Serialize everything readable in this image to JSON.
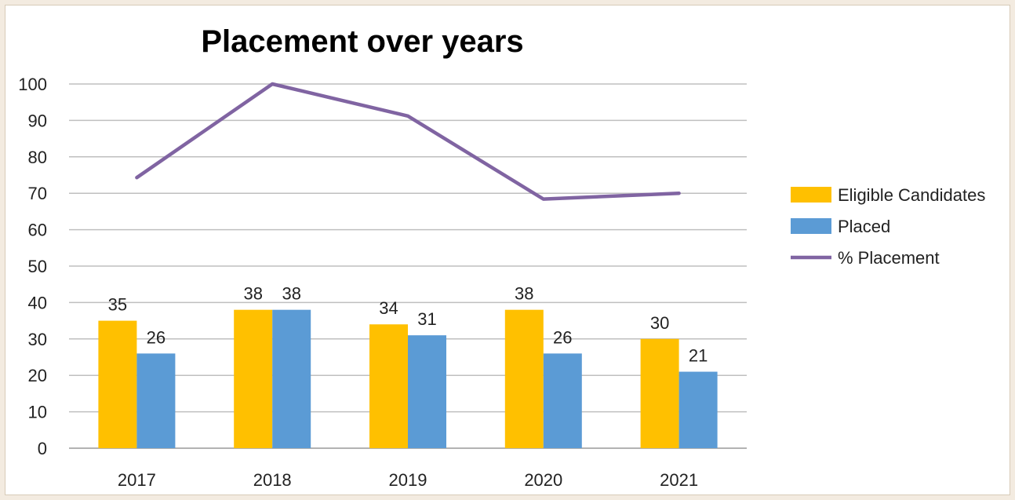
{
  "chart_data": {
    "type": "bar",
    "title": "Placement over years",
    "categories": [
      "2017",
      "2018",
      "2019",
      "2020",
      "2021"
    ],
    "series": [
      {
        "name": "Eligible Candidates",
        "type": "bar",
        "color": "#ffc000",
        "values": [
          35,
          38,
          34,
          38,
          30
        ],
        "labels": [
          "35",
          "38",
          "34",
          "38",
          "30"
        ]
      },
      {
        "name": "Placed",
        "type": "bar",
        "color": "#5b9bd5",
        "values": [
          26,
          38,
          31,
          26,
          21
        ],
        "labels": [
          "26",
          "38",
          "31",
          "26",
          "21"
        ]
      },
      {
        "name": "% Placement",
        "type": "line",
        "color": "#8064a2",
        "values": [
          74.3,
          100,
          91.2,
          68.4,
          70
        ]
      }
    ],
    "ylim": [
      0,
      100
    ],
    "yticks": [
      "0",
      "10",
      "20",
      "30",
      "40",
      "50",
      "60",
      "70",
      "80",
      "90",
      "100"
    ],
    "grid": true,
    "legend_position": "right"
  }
}
